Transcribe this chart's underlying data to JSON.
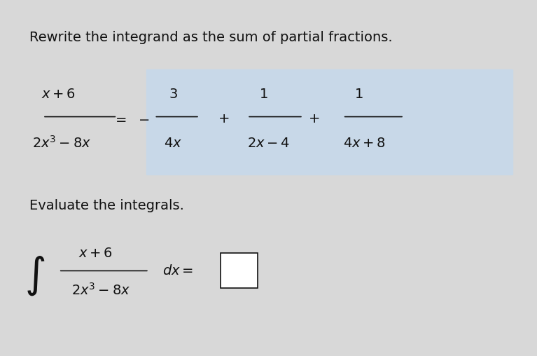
{
  "bg_color": "#d8d8d8",
  "panel_color": "#e8e8e8",
  "highlight_color": "#c8d8e8",
  "title_text": "Rewrite the integrand as the sum of partial fractions.",
  "section2_text": "Evaluate the integrals.",
  "text_color": "#111111",
  "figsize": [
    7.67,
    5.08
  ],
  "dpi": 100
}
